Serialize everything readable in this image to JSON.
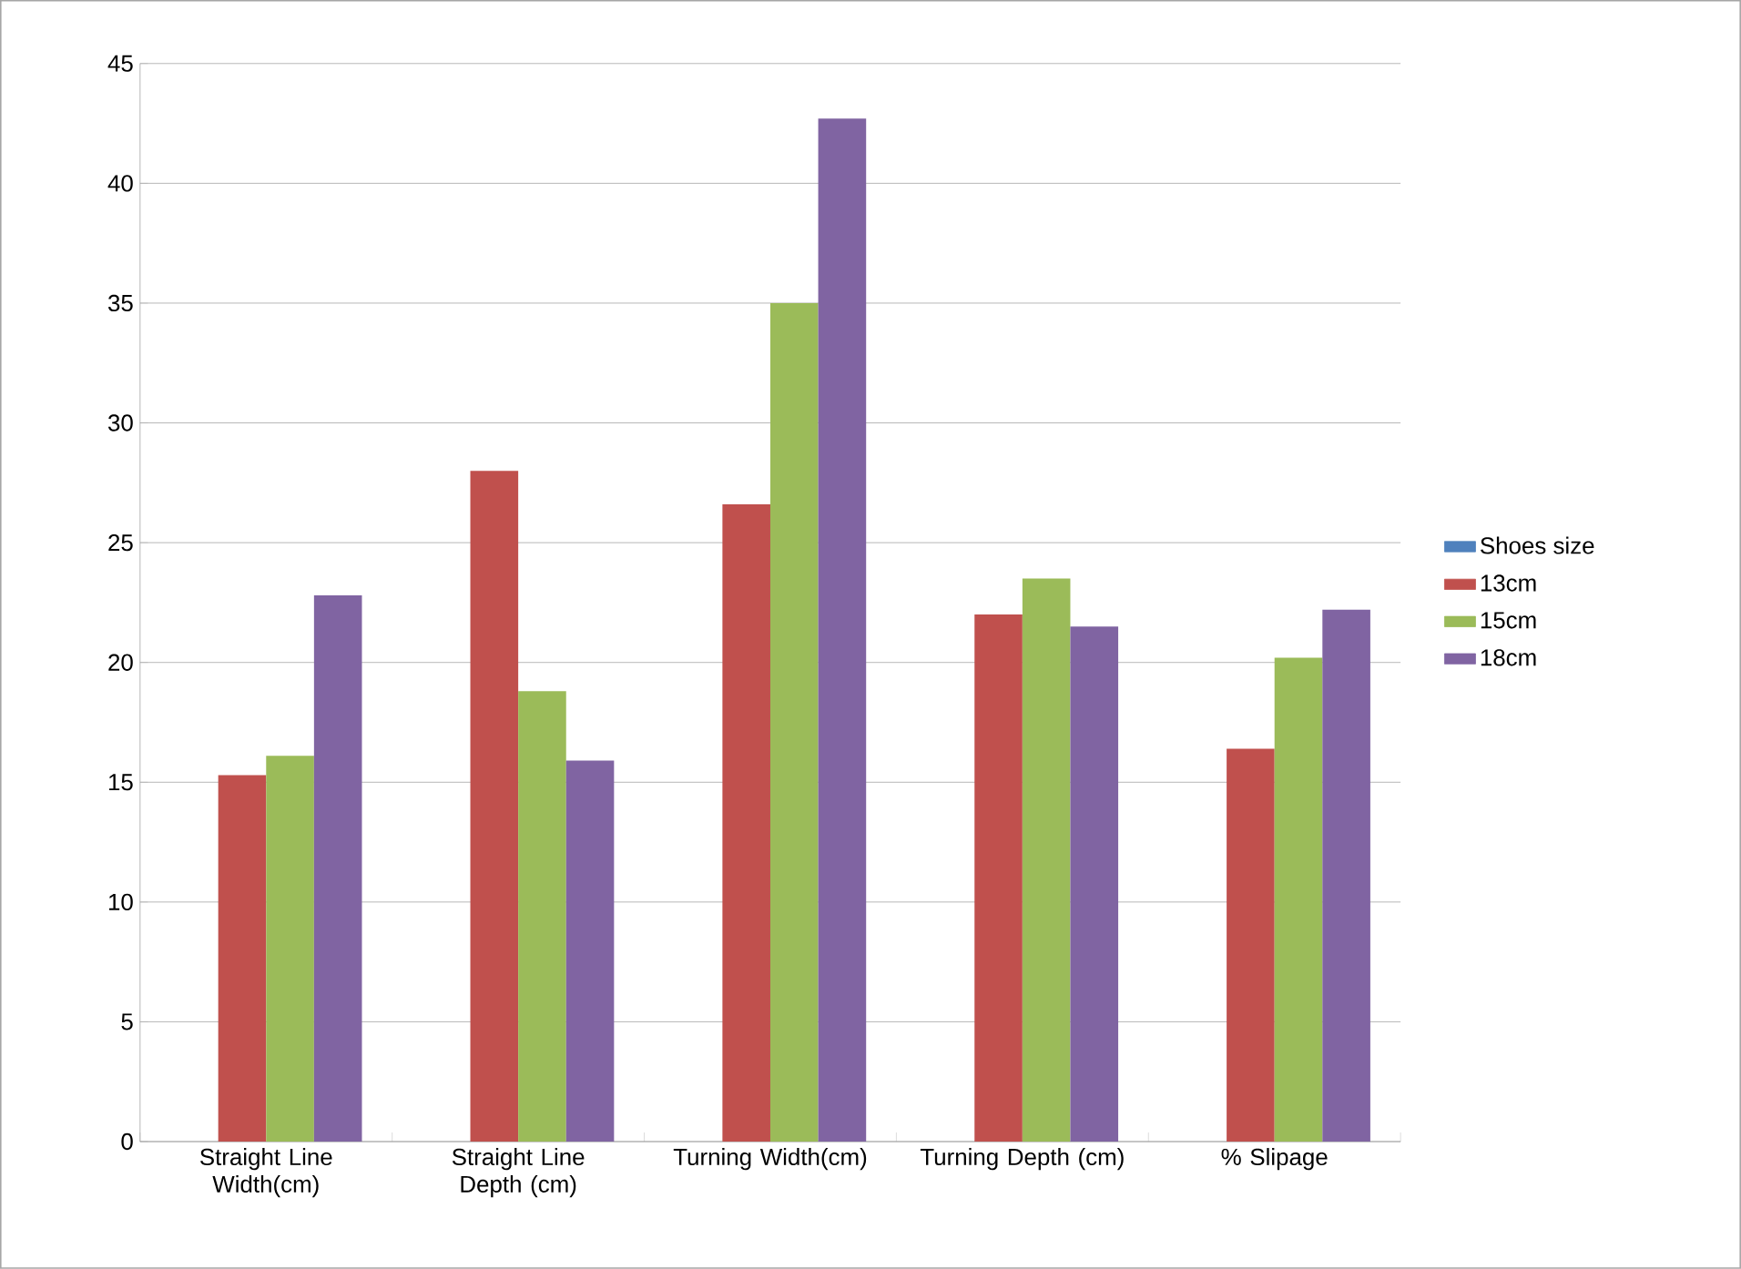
{
  "chart_data": {
    "type": "bar",
    "categories": [
      "Straight Line Width(cm)",
      "Straight Line Depth (cm)",
      "Turning Width(cm)",
      "Turning Depth (cm)",
      "% Slipage"
    ],
    "series": [
      {
        "name": "Shoes size",
        "color": "#4f81bd",
        "values": [
          null,
          null,
          null,
          null,
          null
        ]
      },
      {
        "name": "13cm",
        "color": "#c0504d",
        "values": [
          15.3,
          28.0,
          26.6,
          22.0,
          16.4
        ]
      },
      {
        "name": "15cm",
        "color": "#9bbb59",
        "values": [
          16.1,
          18.8,
          35.0,
          23.5,
          20.2
        ]
      },
      {
        "name": "18cm",
        "color": "#8064a2",
        "values": [
          22.8,
          15.9,
          42.7,
          21.5,
          22.2
        ]
      }
    ],
    "ylim": [
      0,
      45
    ],
    "yticks": [
      0,
      5,
      10,
      15,
      20,
      25,
      30,
      35,
      40,
      45
    ],
    "grid": "y",
    "legend": "right"
  }
}
